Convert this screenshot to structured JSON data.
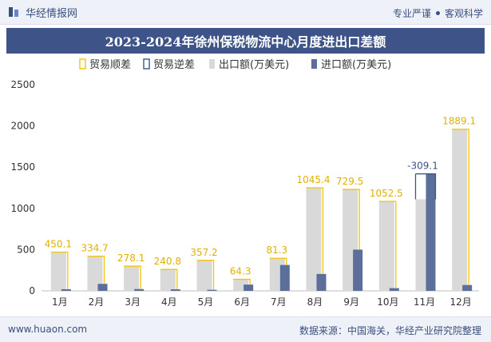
{
  "header": {
    "brand": "华经情报网",
    "tag1": "专业严谨",
    "tag2": "客观科学"
  },
  "footer": {
    "website": "www.huaon.com",
    "source": "数据来源：中国海关，华经产业研究院整理"
  },
  "colors": {
    "surplus": "#f5c400",
    "deficit": "#3e5488",
    "export": "#d9d9d9",
    "import": "#5b6f9a"
  },
  "chart_data": {
    "type": "bar",
    "title": "2023-2024年徐州保税物流中心月度进出口差额",
    "categories": [
      "1月",
      "2月",
      "3月",
      "4月",
      "5月",
      "6月",
      "7月",
      "8月",
      "9月",
      "10月",
      "11月",
      "12月"
    ],
    "legend": [
      "贸易顺差",
      "贸易逆差",
      "出口额(万美元)",
      "进口额(万美元)"
    ],
    "series": [
      {
        "name": "出口额(万美元)",
        "values": [
          470,
          420,
          300,
          260,
          370,
          140,
          395,
          1250,
          1230,
          1085,
          1110,
          1960
        ]
      },
      {
        "name": "进口额(万美元)",
        "values": [
          20,
          85,
          22,
          19,
          13,
          76,
          314,
          205,
          500,
          33,
          1419,
          71
        ]
      }
    ],
    "balance": {
      "values": [
        450.1,
        334.7,
        278.1,
        240.8,
        357.2,
        64.3,
        81.3,
        1045.4,
        729.5,
        1052.5,
        -309.1,
        1889.1
      ],
      "labels": [
        "450.1",
        "334.7",
        "278.1",
        "240.8",
        "357.2",
        "64.3",
        "81.3",
        "1045.4",
        "729.5",
        "1052.5",
        "-309.1",
        "1889.1"
      ]
    },
    "yticks": [
      "0",
      "500",
      "1000",
      "1500",
      "2000",
      "2500"
    ],
    "ylim": [
      0,
      2500
    ],
    "grid": false,
    "legend_position": "top"
  }
}
